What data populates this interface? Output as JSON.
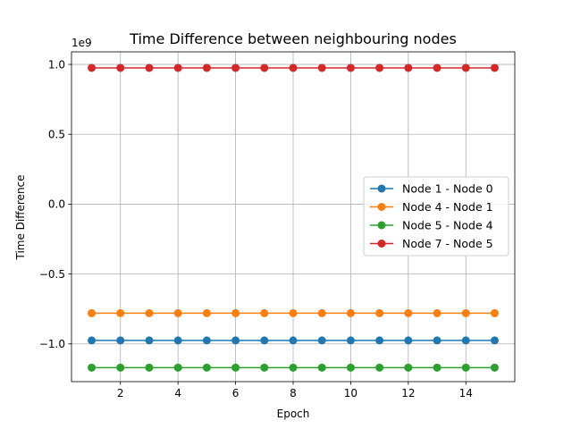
{
  "chart_data": {
    "type": "line",
    "title": "Time Difference between neighbouring nodes",
    "xlabel": "Epoch",
    "ylabel": "Time Difference",
    "y_offset_text": "1e9",
    "x": [
      1,
      2,
      3,
      4,
      5,
      6,
      7,
      8,
      9,
      10,
      11,
      12,
      13,
      14,
      15
    ],
    "xlim": [
      0.3,
      15.7
    ],
    "ylim": [
      -1.27,
      1.09
    ],
    "xticks": [
      2,
      4,
      6,
      8,
      10,
      12,
      14
    ],
    "xtick_labels": [
      "2",
      "4",
      "6",
      "8",
      "10",
      "12",
      "14"
    ],
    "yticks": [
      -1.0,
      -0.5,
      0.0,
      0.5,
      1.0
    ],
    "ytick_labels": [
      "−1.0",
      "−0.5",
      "0.0",
      "0.5",
      "1.0"
    ],
    "grid": true,
    "legend_position": "center-right",
    "series": [
      {
        "name": "Node 1 - Node 0",
        "color": "#1f77b4",
        "values": [
          -0.975,
          -0.975,
          -0.975,
          -0.975,
          -0.975,
          -0.975,
          -0.975,
          -0.975,
          -0.975,
          -0.975,
          -0.975,
          -0.975,
          -0.975,
          -0.975,
          -0.975
        ]
      },
      {
        "name": "Node 4 - Node 1",
        "color": "#ff7f0e",
        "values": [
          -0.78,
          -0.78,
          -0.78,
          -0.78,
          -0.78,
          -0.78,
          -0.78,
          -0.78,
          -0.78,
          -0.78,
          -0.78,
          -0.78,
          -0.78,
          -0.78,
          -0.78
        ]
      },
      {
        "name": "Node 5 - Node 4",
        "color": "#2ca02c",
        "values": [
          -1.17,
          -1.17,
          -1.17,
          -1.17,
          -1.17,
          -1.17,
          -1.17,
          -1.17,
          -1.17,
          -1.17,
          -1.17,
          -1.17,
          -1.17,
          -1.17,
          -1.17
        ]
      },
      {
        "name": "Node 7 - Node 5",
        "color": "#d62728",
        "values": [
          0.975,
          0.975,
          0.975,
          0.975,
          0.975,
          0.975,
          0.975,
          0.975,
          0.975,
          0.975,
          0.975,
          0.975,
          0.975,
          0.975,
          0.975
        ]
      }
    ]
  }
}
